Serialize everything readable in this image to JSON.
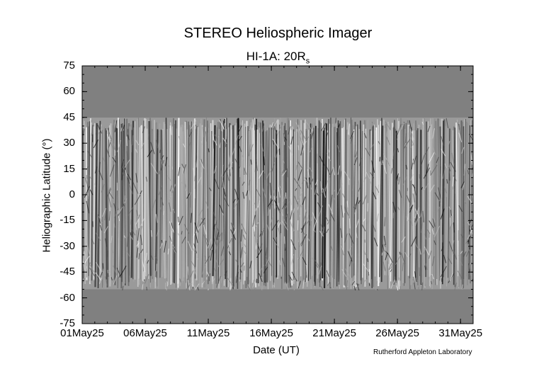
{
  "chart_data": {
    "type": "heatmap",
    "title": "STEREO Heliospheric Imager",
    "subtitle_main": "HI-1A: 20R",
    "subtitle_sub": "s",
    "xlabel": "Date (UT)",
    "ylabel": "Heliographic Latitude (°)",
    "yticks": [
      "75",
      "60",
      "45",
      "30",
      "15",
      "0",
      "-15",
      "-30",
      "-45",
      "-60",
      "-75"
    ],
    "xticks": [
      "01May25",
      "06May25",
      "11May25",
      "16May25",
      "21May25",
      "26May25",
      "31May25"
    ],
    "ylim": [
      -75,
      75
    ],
    "xlim": [
      "01May25",
      "01Jun25"
    ],
    "data_coverage_latitude": [
      -55,
      45
    ],
    "fill_color": "#808080",
    "colormap": "grayscale"
  },
  "credit": "Rutherford Appleton Laboratory"
}
